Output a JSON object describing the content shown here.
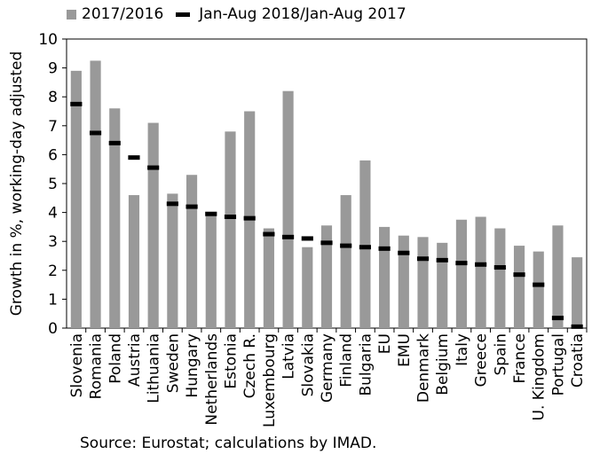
{
  "chart_data": {
    "type": "bar",
    "title": "",
    "xlabel": "",
    "ylabel": "Growth in %, working-day adjusted",
    "ylim": [
      0,
      10
    ],
    "yticks": [
      "0",
      "1",
      "2",
      "3",
      "4",
      "5",
      "6",
      "7",
      "8",
      "9",
      "10"
    ],
    "grid": false,
    "legend_position": "top-left",
    "source": "Source: Eurostat; calculations by IMAD.",
    "categories": [
      "Slovenia",
      "Romania",
      "Poland",
      "Austria",
      "Lithuania",
      "Sweden",
      "Hungary",
      "Netherlands",
      "Estonia",
      "Czech R.",
      "Luxembourg",
      "Latvia",
      "Slovakia",
      "Germany",
      "Finland",
      "Bulgaria",
      "EU",
      "EMU",
      "Denmark",
      "Belgium",
      "Italy",
      "Greece",
      "Spain",
      "France",
      "U. Kingdom",
      "Portugal",
      "Croatia"
    ],
    "series": [
      {
        "name": "2017/2016",
        "kind": "bar",
        "color": "#999999",
        "values": [
          8.9,
          9.25,
          7.6,
          4.6,
          7.1,
          4.65,
          5.3,
          4.0,
          6.8,
          7.5,
          3.45,
          8.2,
          2.8,
          3.55,
          4.6,
          5.8,
          3.5,
          3.2,
          3.15,
          2.95,
          3.75,
          3.85,
          3.45,
          2.85,
          2.65,
          3.55,
          2.45
        ]
      },
      {
        "name": "Jan-Aug 2018/Jan-Aug 2017",
        "kind": "marker",
        "color": "#000000",
        "values": [
          7.75,
          6.75,
          6.4,
          5.9,
          5.55,
          4.3,
          4.2,
          3.95,
          3.85,
          3.8,
          3.25,
          3.15,
          3.1,
          2.95,
          2.85,
          2.8,
          2.75,
          2.6,
          2.4,
          2.35,
          2.25,
          2.2,
          2.1,
          1.85,
          1.5,
          0.35,
          0.05
        ]
      }
    ]
  }
}
